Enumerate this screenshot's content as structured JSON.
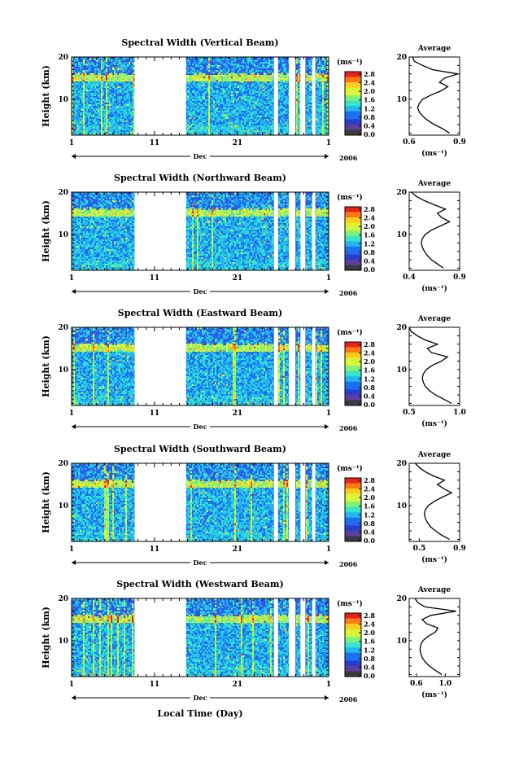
{
  "figure": {
    "x_axis_title": "Local Time (Day)",
    "month_label": "Dec",
    "year_label": "2006",
    "colorbar_unit": "(ms⁻¹)",
    "colorbar_ticks": [
      "0.0",
      "0.4",
      "0.8",
      "1.2",
      "1.6",
      "2.0",
      "2.4",
      "2.8"
    ],
    "colorbar_colors": [
      "#3b3b3b",
      "#5e3fa0",
      "#2a3ec8",
      "#1e6ff0",
      "#22b7f0",
      "#37e6c8",
      "#7ff07a",
      "#d9f53a",
      "#ffcc1a",
      "#ff7a14",
      "#e8231c"
    ],
    "average_title": "Average",
    "average_xlabel": "(ms⁻¹)"
  },
  "chart_data": [
    {
      "type": "heatmap",
      "title": "Spectral Width (Vertical Beam)",
      "ylabel": "Height (km)",
      "x_ticks": [
        "1",
        "11",
        "21",
        "1"
      ],
      "y_ticks": [
        "10",
        "20"
      ],
      "xlim_day": [
        1,
        32
      ],
      "ylim_km": [
        1.5,
        20
      ],
      "data_gaps_day": [
        [
          8.6,
          14.8
        ],
        [
          25.4,
          25.9
        ],
        [
          27.2,
          28.0
        ],
        [
          28.6,
          29.2
        ],
        [
          30.0,
          30.4
        ]
      ],
      "average_profile": {
        "type": "line",
        "xlim": [
          0.6,
          0.9
        ],
        "x_ticks": [
          "0.6",
          "0.9"
        ],
        "y_ticks": [
          "10",
          "20"
        ],
        "height_km": [
          2,
          3,
          4,
          5,
          6,
          7,
          8,
          9,
          10,
          11,
          12,
          13,
          14,
          15,
          16,
          17,
          18,
          19,
          20
        ],
        "value_ms": [
          0.84,
          0.8,
          0.75,
          0.71,
          0.68,
          0.66,
          0.65,
          0.66,
          0.68,
          0.73,
          0.79,
          0.83,
          0.78,
          0.81,
          0.89,
          0.74,
          0.68,
          0.63,
          0.62
        ]
      }
    },
    {
      "type": "heatmap",
      "title": "Spectral Width (Northward Beam)",
      "ylabel": "Height (km)",
      "x_ticks": [
        "1",
        "11",
        "21",
        "1"
      ],
      "y_ticks": [
        "10",
        "20"
      ],
      "xlim_day": [
        1,
        32
      ],
      "ylim_km": [
        1.5,
        20
      ],
      "data_gaps_day": [
        [
          8.6,
          14.8
        ],
        [
          25.4,
          25.9
        ],
        [
          27.2,
          28.0
        ],
        [
          28.6,
          29.2
        ],
        [
          30.0,
          30.4
        ]
      ],
      "average_profile": {
        "type": "line",
        "xlim": [
          0.4,
          0.9
        ],
        "x_ticks": [
          "0.4",
          "0.9"
        ],
        "y_ticks": [
          "10",
          "20"
        ],
        "height_km": [
          2,
          3,
          4,
          5,
          6,
          7,
          8,
          9,
          10,
          11,
          12,
          13,
          14,
          15,
          16,
          17,
          18,
          19,
          20
        ],
        "value_ms": [
          0.74,
          0.68,
          0.62,
          0.58,
          0.55,
          0.53,
          0.52,
          0.53,
          0.56,
          0.62,
          0.71,
          0.8,
          0.72,
          0.68,
          0.76,
          0.65,
          0.55,
          0.47,
          0.42
        ]
      }
    },
    {
      "type": "heatmap",
      "title": "Spectral Width (Eastward Beam)",
      "ylabel": "Height (km)",
      "x_ticks": [
        "1",
        "11",
        "21",
        "1"
      ],
      "y_ticks": [
        "10",
        "20"
      ],
      "xlim_day": [
        1,
        32
      ],
      "ylim_km": [
        1.5,
        20
      ],
      "data_gaps_day": [
        [
          8.6,
          14.8
        ],
        [
          25.4,
          25.9
        ],
        [
          27.2,
          28.0
        ],
        [
          28.6,
          29.2
        ],
        [
          30.0,
          30.4
        ]
      ],
      "average_profile": {
        "type": "line",
        "xlim": [
          0.5,
          1.0
        ],
        "x_ticks": [
          "0.5",
          "1.0"
        ],
        "y_ticks": [
          "10",
          "20"
        ],
        "height_km": [
          2,
          3,
          4,
          5,
          6,
          7,
          8,
          9,
          10,
          11,
          12,
          13,
          14,
          15,
          16,
          17,
          18,
          19,
          20
        ],
        "value_ms": [
          0.92,
          0.84,
          0.76,
          0.7,
          0.66,
          0.64,
          0.63,
          0.64,
          0.67,
          0.73,
          0.82,
          0.88,
          0.72,
          0.68,
          0.78,
          0.66,
          0.58,
          0.52,
          0.5
        ]
      }
    },
    {
      "type": "heatmap",
      "title": "Spectral Width (Southward Beam)",
      "ylabel": "Height (km)",
      "x_ticks": [
        "1",
        "11",
        "21",
        "1"
      ],
      "y_ticks": [
        "10",
        "20"
      ],
      "xlim_day": [
        1,
        32
      ],
      "ylim_km": [
        1.5,
        20
      ],
      "data_gaps_day": [
        [
          8.6,
          14.8
        ],
        [
          25.4,
          25.9
        ],
        [
          27.2,
          28.0
        ],
        [
          28.6,
          29.2
        ],
        [
          30.0,
          30.4
        ]
      ],
      "average_profile": {
        "type": "line",
        "xlim": [
          0.4,
          0.9
        ],
        "x_ticks": [
          "0.5",
          "0.9"
        ],
        "y_ticks": [
          "10",
          "20"
        ],
        "height_km": [
          2,
          3,
          4,
          5,
          6,
          7,
          8,
          9,
          10,
          11,
          12,
          13,
          14,
          15,
          16,
          17,
          18,
          19,
          20
        ],
        "value_ms": [
          0.8,
          0.72,
          0.66,
          0.61,
          0.58,
          0.56,
          0.55,
          0.56,
          0.59,
          0.65,
          0.73,
          0.82,
          0.74,
          0.68,
          0.75,
          0.64,
          0.56,
          0.5,
          0.46
        ]
      }
    },
    {
      "type": "heatmap",
      "title": "Spectral Width (Westward Beam)",
      "ylabel": "Height (km)",
      "x_ticks": [
        "1",
        "11",
        "21",
        "1"
      ],
      "y_ticks": [
        "10",
        "20"
      ],
      "xlim_day": [
        1,
        32
      ],
      "ylim_km": [
        1.5,
        20
      ],
      "data_gaps_day": [
        [
          8.6,
          14.8
        ],
        [
          25.4,
          25.9
        ],
        [
          27.2,
          28.0
        ],
        [
          28.6,
          29.2
        ],
        [
          30.0,
          30.4
        ]
      ],
      "average_profile": {
        "type": "line",
        "xlim": [
          0.5,
          1.2
        ],
        "x_ticks": [
          "0.6",
          "1.0"
        ],
        "y_ticks": [
          "10",
          "20"
        ],
        "height_km": [
          2,
          3,
          4,
          5,
          6,
          7,
          8,
          9,
          10,
          11,
          12,
          13,
          14,
          15,
          16,
          17,
          18,
          19,
          20
        ],
        "value_ms": [
          0.95,
          0.86,
          0.78,
          0.72,
          0.68,
          0.66,
          0.65,
          0.66,
          0.69,
          0.76,
          0.86,
          0.9,
          0.74,
          0.68,
          0.8,
          1.15,
          0.72,
          0.62,
          0.58
        ]
      }
    }
  ]
}
